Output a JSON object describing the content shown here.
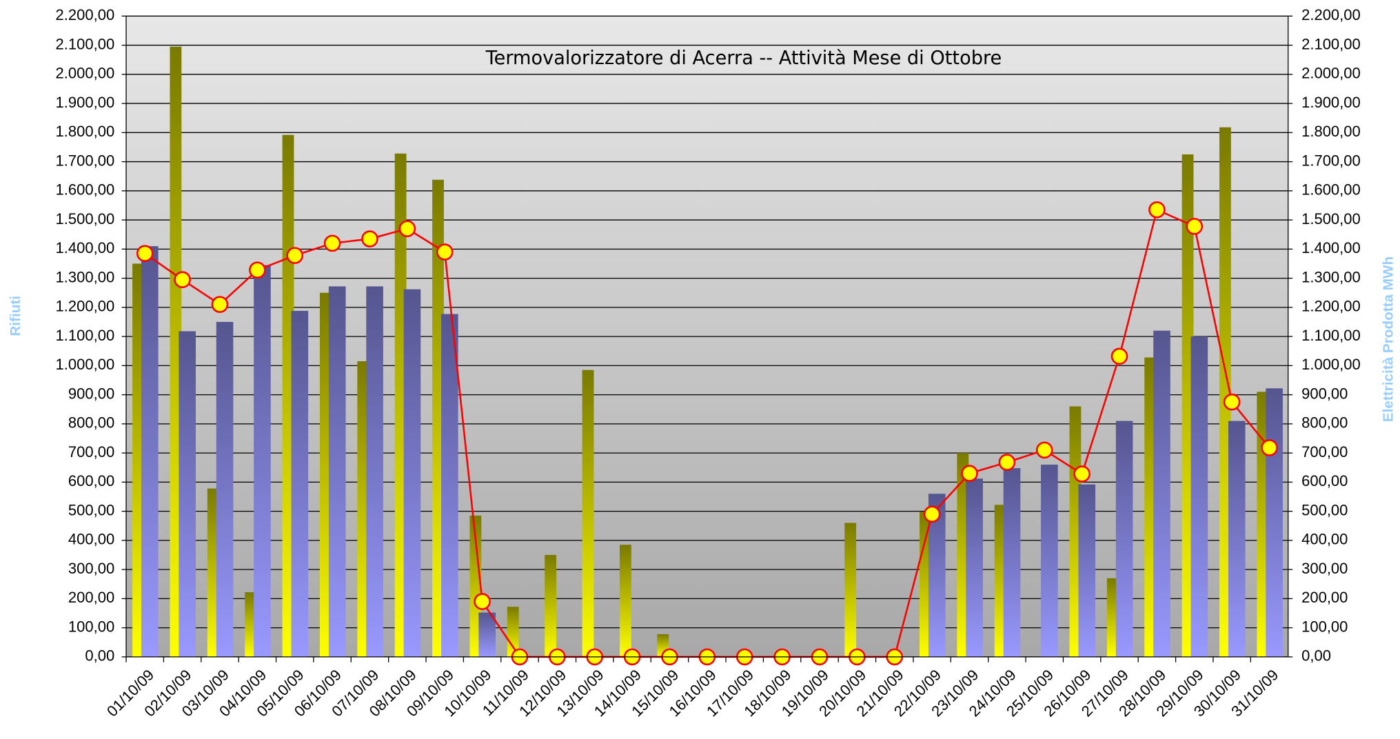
{
  "chart_data": {
    "type": "bar",
    "title": "Termovalorizzatore di Acerra -- Attività Mese di Ottobre",
    "y_label": "Rifiuti",
    "y2_label": "Elettricità Prodotta MWh",
    "categories": [
      "01/10/09",
      "02/10/09",
      "03/10/09",
      "04/10/09",
      "05/10/09",
      "06/10/09",
      "07/10/09",
      "08/10/09",
      "09/10/09",
      "10/10/09",
      "11/10/09",
      "12/10/09",
      "13/10/09",
      "14/10/09",
      "15/10/09",
      "16/10/09",
      "17/10/09",
      "18/10/09",
      "19/10/09",
      "20/10/09",
      "21/10/09",
      "22/10/09",
      "23/10/09",
      "24/10/09",
      "25/10/09",
      "26/10/09",
      "27/10/09",
      "28/10/09",
      "29/10/09",
      "30/10/09",
      "31/10/09"
    ],
    "series": [
      {
        "type": "bar",
        "color": "#ffff00",
        "values": [
          1350,
          2095,
          578,
          222,
          1792,
          1250,
          1015,
          1728,
          1638,
          485,
          172,
          350,
          985,
          385,
          78,
          0,
          0,
          0,
          0,
          460,
          0,
          498,
          700,
          522,
          0,
          860,
          270,
          1028,
          1725,
          1818,
          910
        ]
      },
      {
        "type": "bar",
        "color": "#9999ff",
        "values": [
          1410,
          1118,
          1150,
          1345,
          1188,
          1272,
          1272,
          1262,
          1177,
          152,
          0,
          0,
          0,
          0,
          0,
          0,
          0,
          0,
          0,
          0,
          0,
          560,
          612,
          648,
          660,
          592,
          810,
          1120,
          1100,
          810,
          922
        ]
      },
      {
        "type": "line",
        "axis": "y2",
        "color": "#ff0000",
        "marker_color": "#ffff00",
        "values": [
          1385,
          1295,
          1210,
          1328,
          1378,
          1420,
          1435,
          1470,
          1390,
          190,
          0,
          0,
          0,
          0,
          0,
          0,
          0,
          0,
          0,
          0,
          0,
          490,
          630,
          668,
          710,
          628,
          1032,
          1535,
          1478,
          875,
          718
        ]
      }
    ],
    "ylim": [
      0,
      2200
    ],
    "yticks": [
      {
        "value": 0,
        "label": "0,00"
      },
      {
        "value": 100,
        "label": "100,00"
      },
      {
        "value": 200,
        "label": "200,00"
      },
      {
        "value": 300,
        "label": "300,00"
      },
      {
        "value": 400,
        "label": "400,00"
      },
      {
        "value": 500,
        "label": "500,00"
      },
      {
        "value": 600,
        "label": "600,00"
      },
      {
        "value": 700,
        "label": "700,00"
      },
      {
        "value": 800,
        "label": "800,00"
      },
      {
        "value": 900,
        "label": "900,00"
      },
      {
        "value": 1000,
        "label": "1.000,00"
      },
      {
        "value": 1100,
        "label": "1.100,00"
      },
      {
        "value": 1200,
        "label": "1.200,00"
      },
      {
        "value": 1300,
        "label": "1.300,00"
      },
      {
        "value": 1400,
        "label": "1.400,00"
      },
      {
        "value": 1500,
        "label": "1.500,00"
      },
      {
        "value": 1600,
        "label": "1.600,00"
      },
      {
        "value": 1700,
        "label": "1.700,00"
      },
      {
        "value": 1800,
        "label": "1.800,00"
      },
      {
        "value": 1900,
        "label": "1.900,00"
      },
      {
        "value": 2000,
        "label": "2.000,00"
      },
      {
        "value": 2100,
        "label": "2.100,00"
      },
      {
        "value": 2200,
        "label": "2.200,00"
      }
    ],
    "y2lim": [
      0,
      2200
    ],
    "y2ticks": [
      {
        "value": 0,
        "label": "0,00"
      },
      {
        "value": 100,
        "label": "100,00"
      },
      {
        "value": 200,
        "label": "200,00"
      },
      {
        "value": 300,
        "label": "300,00"
      },
      {
        "value": 400,
        "label": "400,00"
      },
      {
        "value": 500,
        "label": "500,00"
      },
      {
        "value": 600,
        "label": "600,00"
      },
      {
        "value": 700,
        "label": "700,00"
      },
      {
        "value": 800,
        "label": "800,00"
      },
      {
        "value": 900,
        "label": "900,00"
      },
      {
        "value": 1000,
        "label": "1.000,00"
      },
      {
        "value": 1100,
        "label": "1.100,00"
      },
      {
        "value": 1200,
        "label": "1.200,00"
      },
      {
        "value": 1300,
        "label": "1.300,00"
      },
      {
        "value": 1400,
        "label": "1.400,00"
      },
      {
        "value": 1500,
        "label": "1.500,00"
      },
      {
        "value": 1600,
        "label": "1.600,00"
      },
      {
        "value": 1700,
        "label": "1.700,00"
      },
      {
        "value": 1800,
        "label": "1.800,00"
      },
      {
        "value": 1900,
        "label": "1.900,00"
      },
      {
        "value": 2000,
        "label": "2.000,00"
      },
      {
        "value": 2100,
        "label": "2.100,00"
      },
      {
        "value": 2200,
        "label": "2.200,00"
      }
    ],
    "grid": true
  }
}
